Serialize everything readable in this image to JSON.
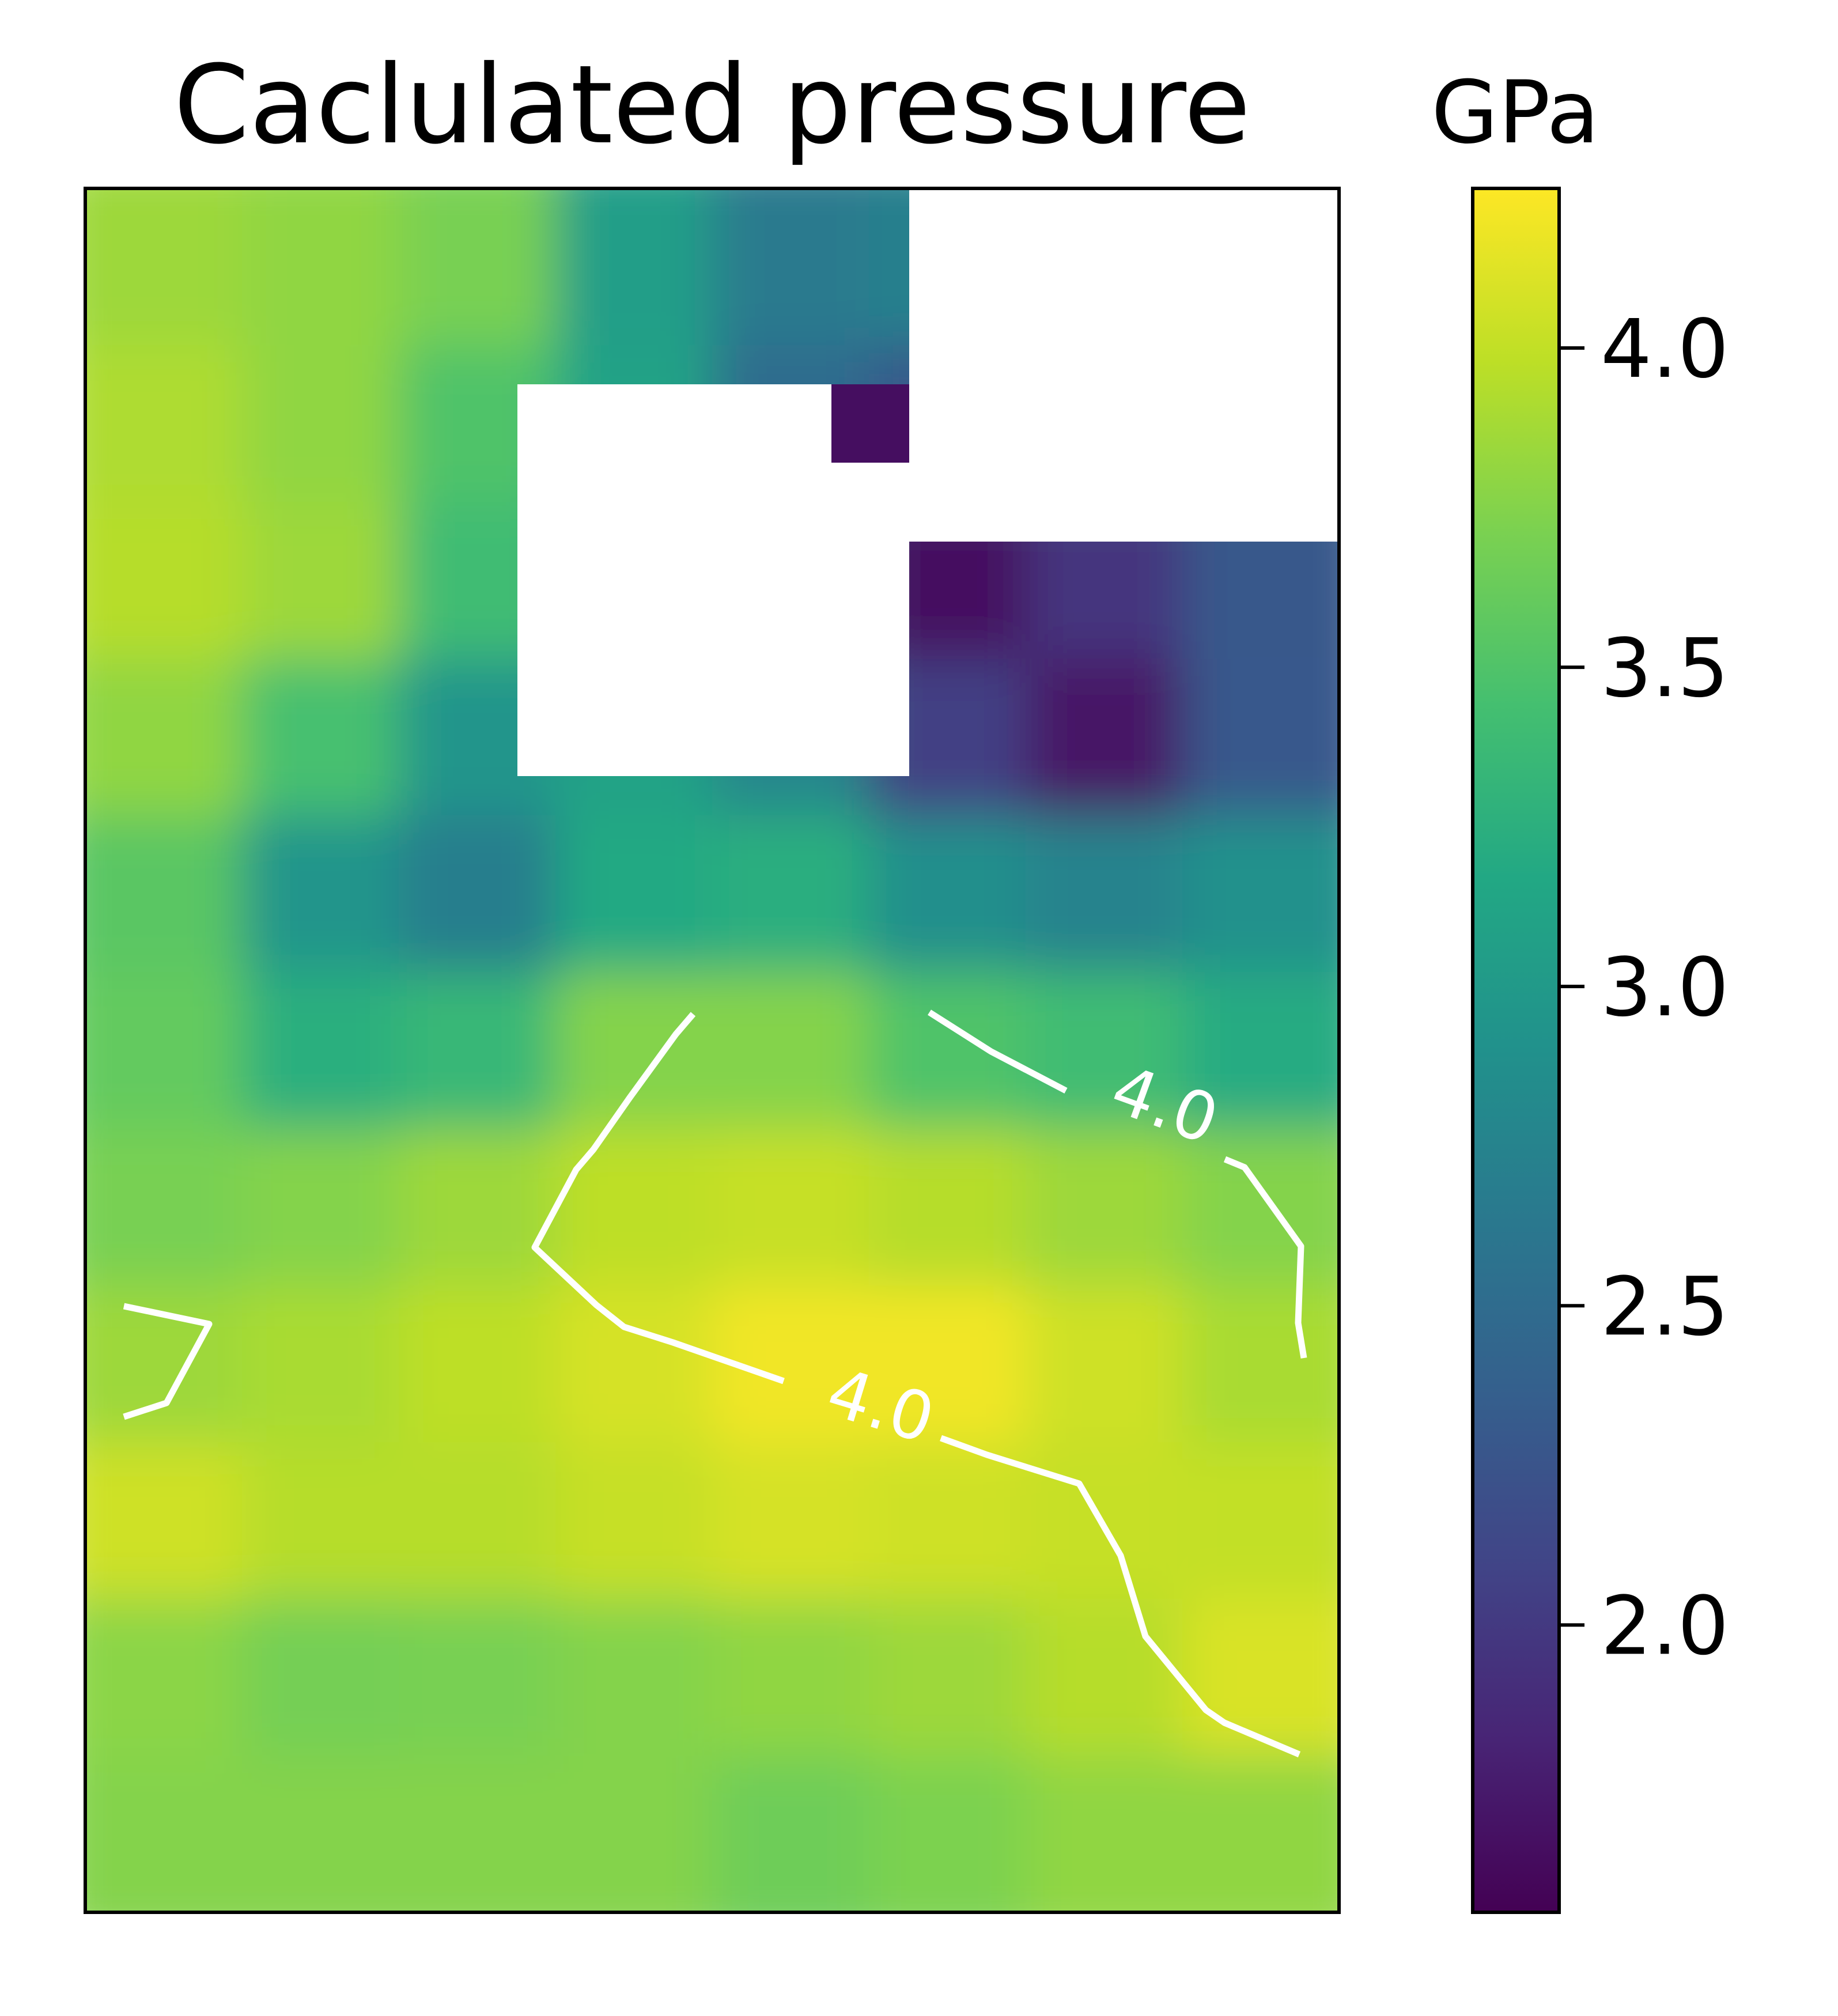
{
  "chart_data": {
    "type": "heatmap",
    "title": "Caclulated pressure",
    "colorbar": {
      "label": "GPa",
      "colormap": "viridis",
      "range": [
        1.55,
        4.25
      ],
      "ticks": [
        {
          "value": 2.0,
          "label": "2.0"
        },
        {
          "value": 2.5,
          "label": "2.5"
        },
        {
          "value": 3.0,
          "label": "3.0"
        },
        {
          "value": 3.5,
          "label": "3.5"
        },
        {
          "value": 4.0,
          "label": "4.0"
        }
      ]
    },
    "grid_shape": [
      11,
      8
    ],
    "field": [
      [
        3.85,
        3.8,
        3.7,
        3.05,
        2.65,
        2.72,
        null,
        null
      ],
      [
        3.92,
        3.8,
        3.5,
        3.1,
        2.5,
        2.3,
        null,
        null
      ],
      [
        3.95,
        3.85,
        3.4,
        null,
        null,
        1.65,
        null,
        null
      ],
      [
        3.8,
        3.45,
        2.95,
        null,
        null,
        null,
        1.7,
        2.3
      ],
      [
        3.55,
        2.95,
        2.7,
        null,
        null,
        null,
        2.75,
        2.9
      ],
      [
        3.6,
        3.25,
        3.35,
        3.75,
        3.75,
        3.5,
        3.4,
        3.2
      ],
      [
        3.7,
        3.75,
        3.85,
        3.98,
        4.02,
        3.95,
        3.85,
        3.75
      ],
      [
        3.85,
        3.9,
        3.98,
        4.08,
        4.2,
        4.2,
        4.05,
        3.9
      ],
      [
        4.05,
        3.95,
        3.95,
        4.02,
        4.08,
        4.05,
        4.02,
        4.0
      ],
      [
        3.78,
        3.68,
        3.7,
        3.75,
        3.8,
        3.85,
        3.95,
        4.1
      ],
      [
        3.75,
        3.75,
        3.75,
        3.75,
        3.65,
        3.72,
        3.8,
        3.8
      ]
    ],
    "contour": {
      "level": 4.0,
      "label": "4.0",
      "color": "#ffffff"
    }
  }
}
